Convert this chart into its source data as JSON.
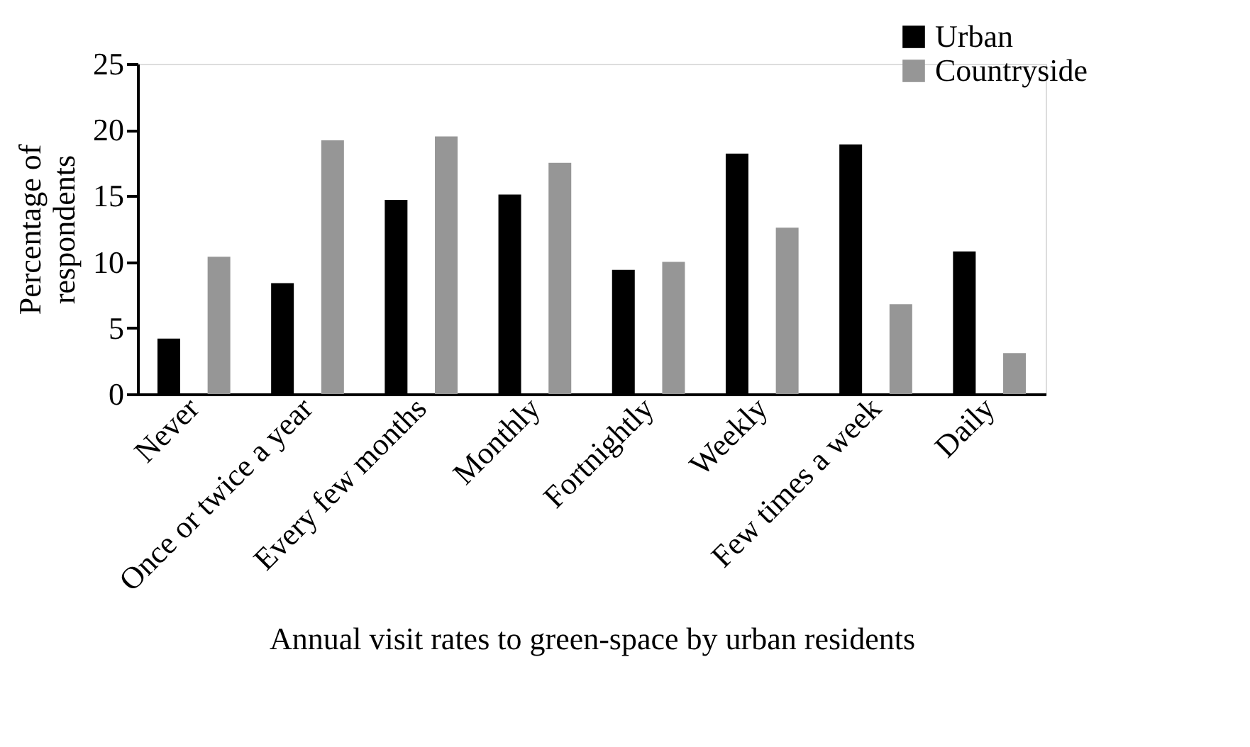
{
  "chart_data": {
    "type": "bar",
    "categories": [
      "Never",
      "Once or twice a year",
      "Every few months",
      "Monthly",
      "Fortnightly",
      "Weekly",
      "Few times a week",
      "Daily"
    ],
    "series": [
      {
        "name": "Urban",
        "color": "#000000",
        "values": [
          4.2,
          8.4,
          14.7,
          15.1,
          9.4,
          18.2,
          18.9,
          10.8
        ]
      },
      {
        "name": "Countryside",
        "color": "#969696",
        "values": [
          10.4,
          19.2,
          19.5,
          17.5,
          10.0,
          12.6,
          6.8,
          3.1
        ]
      }
    ],
    "xlabel": "Annual visit rates to green-space by urban residents",
    "ylabel": "Percentage of respondents",
    "ylim": [
      0,
      25
    ],
    "yticks": [
      0,
      5,
      10,
      15,
      20,
      25
    ],
    "grid": false,
    "legend": "top right"
  }
}
